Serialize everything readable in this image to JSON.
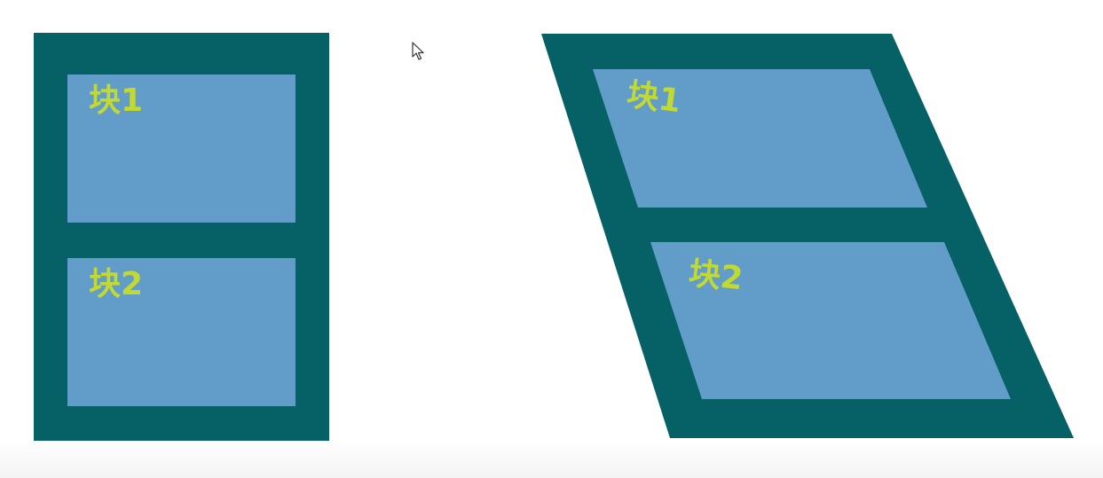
{
  "colors": {
    "container": "#066166",
    "block": "#619dc8",
    "label": "#c2d932",
    "background": "#ffffff"
  },
  "diagram_left": {
    "block1": {
      "label": "块1"
    },
    "block2": {
      "label": "块2"
    }
  },
  "diagram_right": {
    "block1": {
      "label": "块1"
    },
    "block2": {
      "label": "块2"
    }
  }
}
